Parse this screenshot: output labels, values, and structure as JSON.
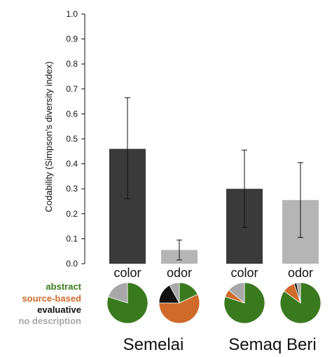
{
  "chart_data": {
    "type": "bar",
    "ylabel": "Codability (Simpson's diversity index)",
    "ylim": [
      0,
      1.0
    ],
    "yticks": [
      "0.0",
      "0.1",
      "0.2",
      "0.3",
      "0.4",
      "0.5",
      "0.6",
      "0.7",
      "0.8",
      "0.9",
      "1.0"
    ],
    "grid": false,
    "groups": [
      {
        "name": "Semelai",
        "bars": [
          {
            "label": "color",
            "value": 0.46,
            "err_low": 0.26,
            "err_high": 0.665,
            "color": "#3a3a3a"
          },
          {
            "label": "odor",
            "value": 0.055,
            "err_low": 0.015,
            "err_high": 0.095,
            "color": "#b5b5b5"
          }
        ]
      },
      {
        "name": "Semaq Beri",
        "bars": [
          {
            "label": "color",
            "value": 0.3,
            "err_low": 0.145,
            "err_high": 0.455,
            "color": "#3a3a3a"
          },
          {
            "label": "odor",
            "value": 0.255,
            "err_low": 0.105,
            "err_high": 0.405,
            "color": "#b5b5b5"
          }
        ]
      }
    ],
    "legend": [
      {
        "label": "abstract",
        "color": "#3a7a1e"
      },
      {
        "label": "source-based",
        "color": "#d06a2a"
      },
      {
        "label": "evaluative",
        "color": "#111111"
      },
      {
        "label": "no description",
        "color": "#a8a8a8"
      }
    ],
    "pies": [
      {
        "group": "Semelai",
        "bar": "color",
        "slices": {
          "abstract": 0.8,
          "source-based": 0.0,
          "evaluative": 0.0,
          "no description": 0.2
        }
      },
      {
        "group": "Semelai",
        "bar": "odor",
        "slices": {
          "abstract": 0.18,
          "source-based": 0.57,
          "evaluative": 0.17,
          "no description": 0.08
        }
      },
      {
        "group": "Semaq Beri",
        "bar": "color",
        "slices": {
          "abstract": 0.8,
          "source-based": 0.06,
          "evaluative": 0.0,
          "no description": 0.14
        }
      },
      {
        "group": "Semaq Beri",
        "bar": "odor",
        "slices": {
          "abstract": 0.85,
          "source-based": 0.1,
          "evaluative": 0.02,
          "no description": 0.03
        }
      }
    ]
  }
}
